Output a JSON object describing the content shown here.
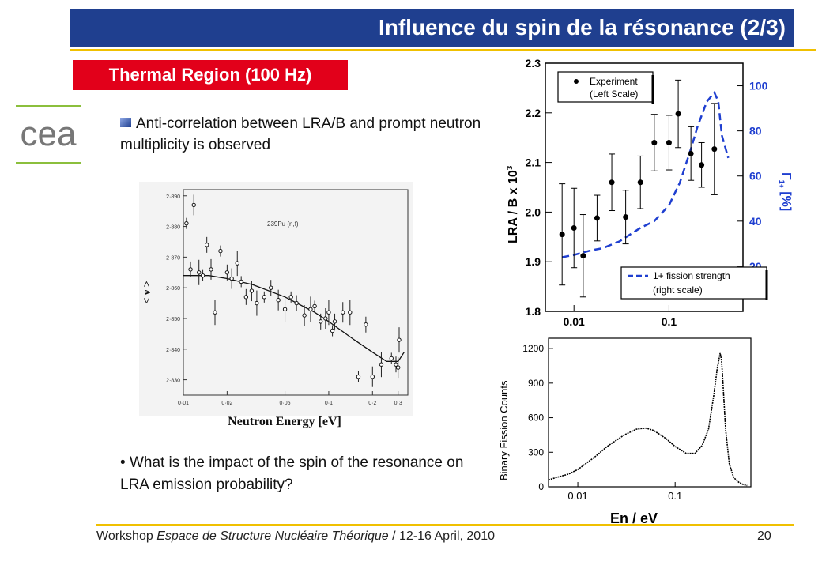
{
  "title": "Influence du spin de la résonance (2/3)",
  "subtitle": "Thermal Region (100 Hz)",
  "logo_text": "cea",
  "bullet1": "Anti-correlation between LRA/B and prompt neutron multiplicity is observed",
  "bullet2_marker": "•",
  "bullet2": "What is the impact of the spin of the resonance on LRA emission probability?",
  "footer": {
    "prefix": "Workshop ",
    "italic": "Espace de Structure Nucléaire Théorique",
    "suffix": " / 12-16 April, 2010",
    "page": "20"
  },
  "colors": {
    "title_bar": "#1f3f8f",
    "subtitle_bg": "#e2001a",
    "accent_line": "#f0c000",
    "right_axis": "#1f3fd0",
    "logo_grey": "#777777",
    "logo_green": "#8bbf3c"
  },
  "chart_data": [
    {
      "type": "scatter",
      "title": "",
      "xlabel": "Neutron Energy [eV]",
      "ylabel": "< ν >",
      "annotation": "239Pu (n,f)",
      "x_scale": "log",
      "xlim": [
        0.01,
        0.35
      ],
      "ylim": [
        2.825,
        2.892
      ],
      "xticks": [
        0.01,
        0.02,
        0.05,
        0.1,
        0.2,
        0.3
      ],
      "xtick_labels": [
        "0·01",
        "0·02",
        "0·05",
        "0·1",
        "0·2",
        "0·3"
      ],
      "yticks": [
        2.83,
        2.84,
        2.85,
        2.86,
        2.87,
        2.88,
        2.89
      ],
      "ytick_labels": [
        "2·830",
        "2·840",
        "2·850",
        "2·860",
        "2·870",
        "2·880",
        "2·890"
      ],
      "series": [
        {
          "x": [
            0.0105,
            0.0112,
            0.0118,
            0.0128,
            0.0136,
            0.0145,
            0.0155,
            0.0165,
            0.018,
            0.02,
            0.0215,
            0.0235,
            0.025,
            0.027,
            0.0295,
            0.032,
            0.036,
            0.04,
            0.045,
            0.05,
            0.055,
            0.06,
            0.068,
            0.075,
            0.08,
            0.088,
            0.095,
            0.1,
            0.106,
            0.11,
            0.125,
            0.14,
            0.16,
            0.18,
            0.2,
            0.23,
            0.27,
            0.29,
            0.3,
            0.305
          ],
          "y": [
            2.881,
            2.866,
            2.887,
            2.865,
            2.864,
            2.874,
            2.866,
            2.852,
            2.872,
            2.865,
            2.863,
            2.868,
            2.862,
            2.857,
            2.859,
            2.855,
            2.857,
            2.86,
            2.856,
            2.853,
            2.857,
            2.855,
            2.851,
            2.853,
            2.854,
            2.849,
            2.85,
            2.852,
            2.846,
            2.849,
            2.852,
            2.852,
            2.831,
            2.848,
            2.831,
            2.835,
            2.837,
            2.835,
            2.834,
            2.843
          ]
        },
        {
          "name": "fit",
          "x": [
            0.01,
            0.015,
            0.02,
            0.03,
            0.05,
            0.08,
            0.1,
            0.15,
            0.2,
            0.25,
            0.3,
            0.33
          ],
          "y": [
            2.864,
            2.864,
            2.863,
            2.861,
            2.857,
            2.852,
            2.849,
            2.843,
            2.839,
            2.836,
            2.836,
            2.839
          ]
        }
      ]
    },
    {
      "type": "scatter",
      "title": "",
      "xlabel": "",
      "ylabel": "LRA / B x 10",
      "ylabel_sup": "3",
      "y2label": "Γ",
      "y2label_extra": "[%]",
      "x_scale": "log",
      "xlim": [
        0.005,
        0.6
      ],
      "ylim": [
        1.8,
        2.3
      ],
      "y2lim": [
        0,
        110
      ],
      "yticks": [
        1.8,
        1.9,
        2.0,
        2.1,
        2.2,
        2.3
      ],
      "ytick_labels": [
        "1.8",
        "1.9",
        "2.0",
        "2.1",
        "2.2",
        "2.3"
      ],
      "y2ticks": [
        20,
        40,
        60,
        80,
        100
      ],
      "y2tick_labels": [
        "20",
        "40",
        "60",
        "80",
        "100"
      ],
      "xtick_labels": [
        "0.01",
        "0.1"
      ],
      "legend": [
        {
          "label": "Experiment",
          "sublabel": "(Left Scale)",
          "placement": "top-left"
        },
        {
          "label": "1+ fission strength",
          "sublabel": "(right scale)",
          "placement": "bottom-right"
        }
      ],
      "series": [
        {
          "name": "Experiment",
          "x": [
            0.0075,
            0.01,
            0.0125,
            0.0175,
            0.025,
            0.035,
            0.05,
            0.07,
            0.1,
            0.125,
            0.17,
            0.22,
            0.3
          ],
          "y": [
            1.955,
            1.968,
            1.912,
            1.988,
            2.06,
            1.99,
            2.06,
            2.14,
            2.14,
            2.198,
            2.118,
            2.095,
            2.127
          ],
          "err": [
            0.102,
            0.08,
            0.083,
            0.046,
            0.057,
            0.054,
            0.053,
            0.057,
            0.055,
            0.068,
            0.054,
            0.045,
            0.092
          ]
        },
        {
          "name": "1+ fission strength",
          "x": [
            0.0075,
            0.01,
            0.015,
            0.02,
            0.03,
            0.05,
            0.07,
            0.1,
            0.13,
            0.17,
            0.2,
            0.25,
            0.3,
            0.33,
            0.36,
            0.42
          ],
          "y": [
            24,
            25,
            27,
            28,
            31,
            37,
            40,
            47,
            57,
            72,
            82,
            93,
            97,
            93,
            78,
            68
          ]
        }
      ]
    },
    {
      "type": "line",
      "title": "",
      "xlabel": "En / eV",
      "ylabel": "Binary Fission Counts",
      "x_scale": "log",
      "xlim": [
        0.005,
        0.6
      ],
      "ylim": [
        0,
        1290
      ],
      "yticks": [
        0,
        300,
        600,
        900,
        1200
      ],
      "ytick_labels": [
        "0",
        "300",
        "600",
        "900",
        "1200"
      ],
      "xtick_labels": [
        "0.01",
        "0.1"
      ],
      "series": [
        {
          "x": [
            0.005,
            0.006,
            0.008,
            0.01,
            0.015,
            0.02,
            0.03,
            0.04,
            0.05,
            0.06,
            0.08,
            0.1,
            0.13,
            0.16,
            0.19,
            0.22,
            0.25,
            0.27,
            0.29,
            0.3,
            0.31,
            0.33,
            0.36,
            0.4,
            0.45,
            0.5,
            0.55
          ],
          "y": [
            60,
            80,
            110,
            150,
            260,
            350,
            450,
            500,
            510,
            490,
            420,
            350,
            290,
            290,
            360,
            500,
            800,
            1020,
            1160,
            1100,
            900,
            500,
            200,
            80,
            40,
            20,
            10
          ]
        }
      ]
    }
  ]
}
